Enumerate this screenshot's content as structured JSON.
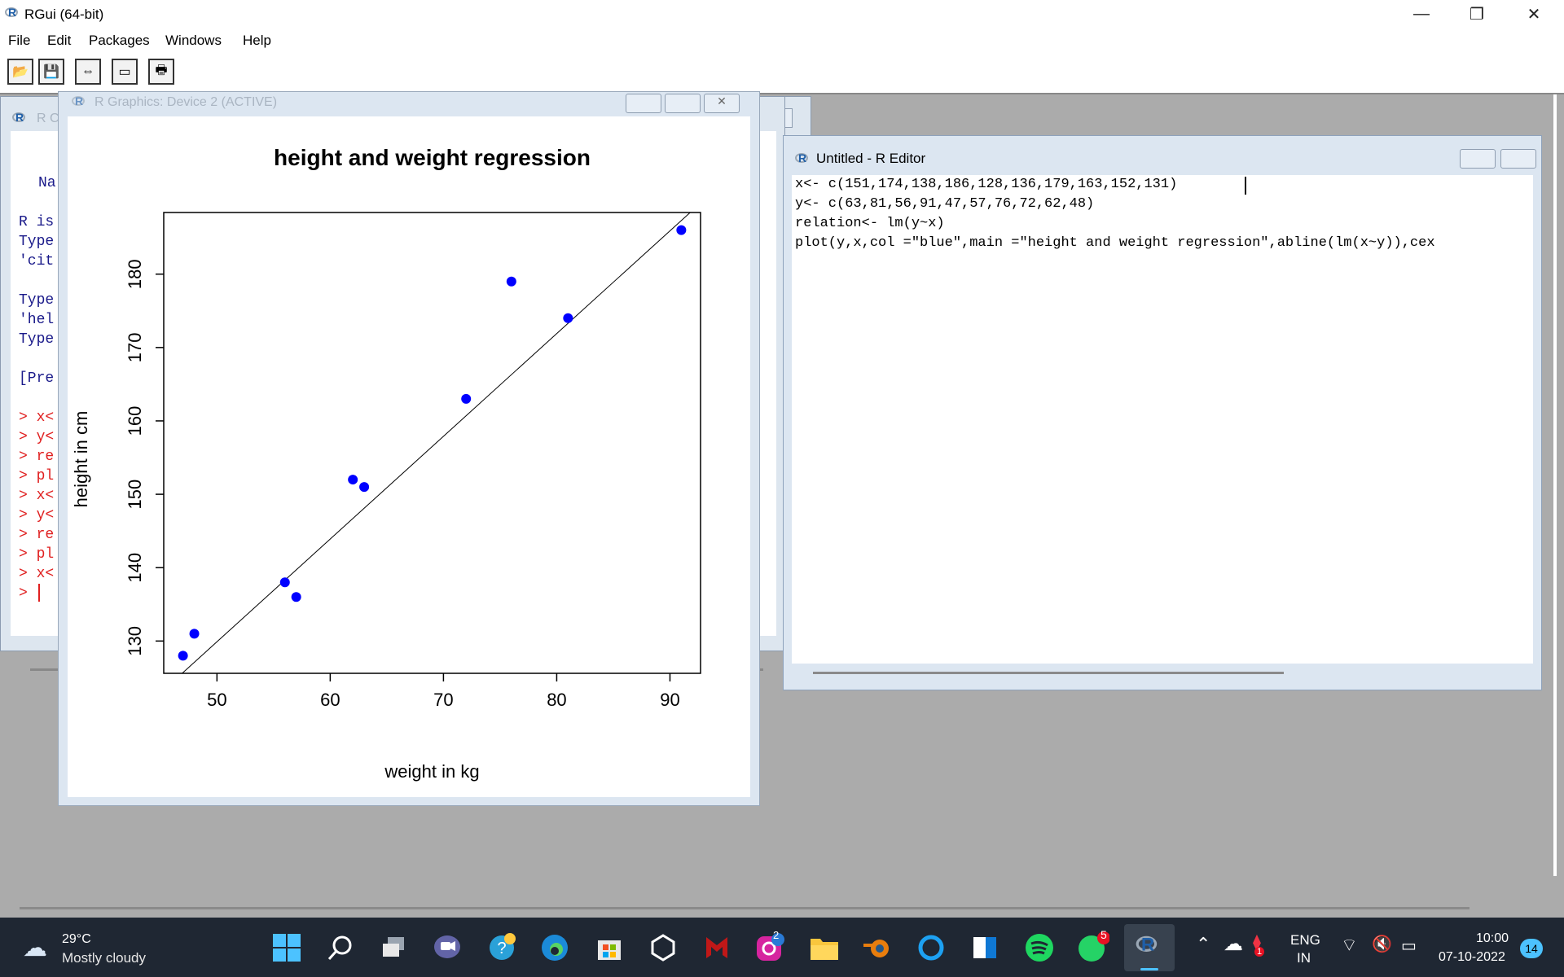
{
  "window": {
    "title": "RGui (64-bit)",
    "minimize": "—",
    "maximize": "❐",
    "close": "✕"
  },
  "menu": [
    "File",
    "Edit",
    "Packages",
    "Windows",
    "Help"
  ],
  "toolbar": {
    "open": "📂",
    "save": "💾",
    "load": "⇔",
    "window": "▭",
    "print": "🖶"
  },
  "console": {
    "title": "R C",
    "lines": [
      "Na",
      "R is",
      "Type",
      "'cit",
      "Type",
      "'hel",
      "Type",
      "[Pre"
    ],
    "history": [
      "> x<",
      "> y<",
      "> re",
      "> pl",
      "> x<",
      "> y<",
      "> re",
      "> pl",
      "> x<",
      "> "
    ],
    "side_marks": [
      "$",
      "$"
    ]
  },
  "graphics": {
    "title": "R Graphics: Device 2 (ACTIVE)",
    "close": "✕"
  },
  "chart_data": {
    "type": "scatter",
    "title": "height and weight regression",
    "xlabel": "weight in kg",
    "ylabel": "height in cm",
    "xlim": [
      45.3,
      92.7
    ],
    "ylim": [
      125.6,
      188.4
    ],
    "xticks": [
      50,
      60,
      70,
      80,
      90
    ],
    "yticks": [
      130,
      140,
      150,
      160,
      170,
      180
    ],
    "points_color": "#0000ff",
    "points": [
      {
        "x": 63,
        "y": 151
      },
      {
        "x": 81,
        "y": 174
      },
      {
        "x": 56,
        "y": 138
      },
      {
        "x": 91,
        "y": 186
      },
      {
        "x": 47,
        "y": 128
      },
      {
        "x": 57,
        "y": 136
      },
      {
        "x": 76,
        "y": 179
      },
      {
        "x": 72,
        "y": 163
      },
      {
        "x": 62,
        "y": 152
      },
      {
        "x": 48,
        "y": 131
      }
    ],
    "regression_line": {
      "intercept": 59.9,
      "slope": 1.4
    }
  },
  "editor": {
    "title": "Untitled - R Editor",
    "code": [
      "x<- c(151,174,138,186,128,136,179,163,152,131)",
      "y<- c(63,81,56,91,47,57,76,72,62,48)",
      "relation<- lm(y~x)",
      "plot(y,x,col =\"blue\",main =\"height and weight regression\",abline(lm(x~y)),cex"
    ]
  },
  "taskbar": {
    "weather_temp": "29°C",
    "weather_desc": "Mostly cloudy",
    "lang_top": "ENG",
    "lang_bottom": "IN",
    "time": "10:00",
    "date": "07-10-2022",
    "notif_count": "14",
    "instagram_badge": "2",
    "whatsapp_badge": "5",
    "tray_badge": "1"
  }
}
